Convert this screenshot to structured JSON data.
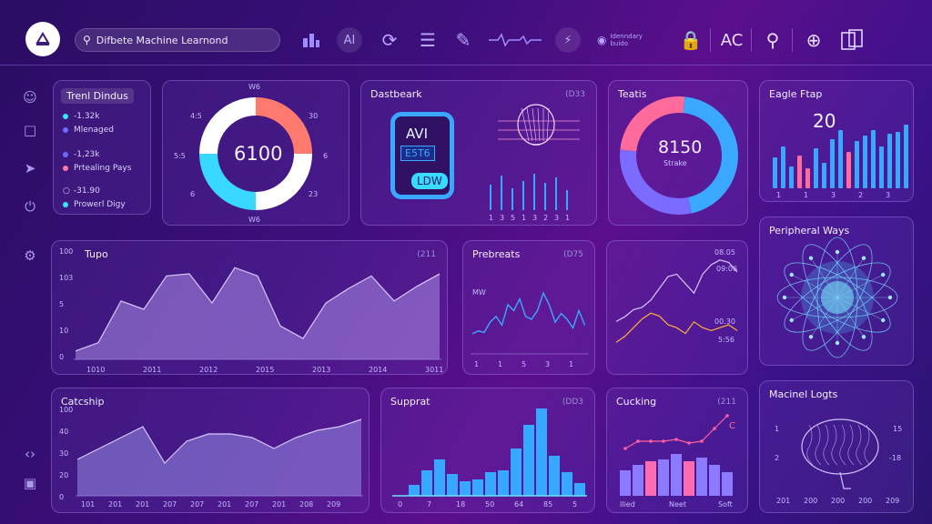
{
  "app": {
    "search_text": "Difbete Machine Learnond"
  },
  "topbar": {
    "icons": [
      "apps-icon",
      "ai-badge",
      "refresh-icon",
      "list-icon",
      "edit-icon",
      "waveform-icon",
      "bolt-icon",
      "profile-info-icon",
      "lock-icon",
      "ac-label",
      "search-icon",
      "compass-icon",
      "panels-icon"
    ],
    "ai_label": "AI",
    "ac_label": "AC",
    "info_line1": "Idenndary",
    "info_line2": "buido"
  },
  "trend": {
    "title": "Trenl Dindus",
    "items": [
      {
        "value": "-1.32k",
        "label": "Mlenaged",
        "color": "#37e6ff"
      },
      {
        "value": "-1,23k",
        "label": "Prtealing Pays",
        "color": "#ff7aa8"
      },
      {
        "value": "-31.90",
        "label": "Prowerl Digy",
        "color": "#6b6bff"
      }
    ]
  },
  "donut1": {
    "center": "6100",
    "top": "W6",
    "bottom": "W6",
    "l1": "4:5",
    "l2": "5:5",
    "l3": "6",
    "r1": "30",
    "r2": "6",
    "r3": "23",
    "segments": [
      {
        "pct": 0.25,
        "color": "#ff7a6e"
      },
      {
        "pct": 0.25,
        "color": "#ffffff"
      },
      {
        "pct": 0.25,
        "color": "#39d9ff"
      },
      {
        "pct": 0.25,
        "color": "#ffffff"
      }
    ]
  },
  "dashboard": {
    "title": "Dastbeark",
    "code": "(D33",
    "card_top": "AVI",
    "card_mid": "E5T6",
    "card_bottom": "LDW",
    "bars": [
      28,
      38,
      24,
      32,
      40,
      30,
      36,
      22
    ],
    "xlabels": [
      "1",
      "3",
      "5",
      "1",
      "3",
      "2",
      "3",
      "1"
    ]
  },
  "tests": {
    "title": "Teatis",
    "center": "8150",
    "sub": "Strake",
    "segments": [
      {
        "pct": 0.45,
        "color": "#3aa8ff"
      },
      {
        "pct": 0.3,
        "color": "#7b6cff"
      },
      {
        "pct": 0.25,
        "color": "#ff6b9b"
      }
    ]
  },
  "eagle": {
    "title": "Eagle Ftap",
    "value": "20",
    "bars": [
      {
        "v": 34,
        "c": "#3aa8ff"
      },
      {
        "v": 46,
        "c": "#3aa8ff"
      },
      {
        "v": 24,
        "c": "#3aa8ff"
      },
      {
        "v": 36,
        "c": "#ff6b9b"
      },
      {
        "v": 22,
        "c": "#ff6b9b"
      },
      {
        "v": 44,
        "c": "#3aa8ff"
      },
      {
        "v": 28,
        "c": "#3aa8ff"
      },
      {
        "v": 54,
        "c": "#3aa8ff"
      },
      {
        "v": 64,
        "c": "#3aa8ff"
      },
      {
        "v": 40,
        "c": "#ff6b9b"
      },
      {
        "v": 52,
        "c": "#3aa8ff"
      },
      {
        "v": 58,
        "c": "#3aa8ff"
      },
      {
        "v": 64,
        "c": "#3aa8ff"
      },
      {
        "v": 46,
        "c": "#3aa8ff"
      },
      {
        "v": 60,
        "c": "#3aa8ff"
      },
      {
        "v": 62,
        "c": "#3aa8ff"
      },
      {
        "v": 70,
        "c": "#3aa8ff"
      }
    ],
    "xlabels": [
      "1",
      "1",
      "3",
      "2",
      "3"
    ]
  },
  "tupo": {
    "title": "Tupo",
    "code": "(211",
    "ylabels": [
      "100",
      "103",
      "5",
      "10",
      "0"
    ],
    "xlabels": [
      "1010",
      "2011",
      "2012",
      "2015",
      "2013",
      "2014",
      "3011"
    ],
    "values": [
      4,
      8,
      28,
      24,
      40,
      41,
      27,
      44,
      40,
      16,
      10,
      27,
      34,
      40,
      28,
      35,
      41
    ]
  },
  "prebreats": {
    "title": "Prebreats",
    "code": "(D75",
    "label": "MW",
    "values": [
      10,
      12,
      11,
      18,
      22,
      16,
      30,
      26,
      34,
      22,
      20,
      26,
      38,
      30,
      18,
      24,
      20,
      14,
      26,
      16
    ],
    "xlabels": [
      "1",
      "1",
      "5",
      "3",
      "1"
    ]
  },
  "line3": {
    "a1": "08.05",
    "a2": "09:06",
    "b1": "00.30",
    "b2": "5:56",
    "series_a": [
      32,
      36,
      42,
      44,
      50,
      60,
      70,
      72,
      64,
      56,
      72,
      80,
      84,
      82,
      74
    ],
    "series_b": [
      18,
      22,
      28,
      34,
      38,
      36,
      30,
      28,
      24,
      32,
      28,
      26,
      28,
      30,
      26
    ]
  },
  "peripheral": {
    "title": "Peripheral Ways"
  },
  "catchup": {
    "title": "Catcship",
    "ylabels": [
      "100",
      "40",
      "30",
      "20",
      "0"
    ],
    "xlabels": [
      "101",
      "201",
      "201",
      "207",
      "207",
      "201",
      "207",
      "201",
      "208",
      "209"
    ],
    "values": [
      20,
      26,
      32,
      38,
      18,
      30,
      34,
      34,
      32,
      26,
      32,
      36,
      38,
      42
    ]
  },
  "support": {
    "title": "Supprat",
    "code": "(DD3",
    "bars": [
      0,
      12,
      28,
      40,
      24,
      16,
      18,
      26,
      28,
      52,
      78,
      96,
      44,
      26,
      14
    ],
    "xlabels": [
      "0",
      "7",
      "18",
      "50",
      "64",
      "85",
      "5"
    ]
  },
  "cucking": {
    "title": "Cucking",
    "code": "(211",
    "bars": [
      {
        "v": 28,
        "c": "#8d7bff"
      },
      {
        "v": 34,
        "c": "#8d7bff"
      },
      {
        "v": 38,
        "c": "#ff6bb0"
      },
      {
        "v": 40,
        "c": "#8d7bff"
      },
      {
        "v": 46,
        "c": "#8d7bff"
      },
      {
        "v": 38,
        "c": "#ff6bb0"
      },
      {
        "v": 42,
        "c": "#8d7bff"
      },
      {
        "v": 34,
        "c": "#8d7bff"
      },
      {
        "v": 26,
        "c": "#8d7bff"
      }
    ],
    "line": [
      52,
      60,
      60,
      60,
      62,
      58,
      60,
      74,
      88
    ],
    "xlabels": [
      "Ilied",
      "Neet",
      "Soft"
    ],
    "marker": "C"
  },
  "machine": {
    "title": "Macinel Logts",
    "l1": "1",
    "l2": "2",
    "r1": "15",
    "r2": "-18",
    "xlabels": [
      "201",
      "200",
      "200",
      "200",
      "209"
    ]
  },
  "sidebar": {
    "icons": [
      "user-icon",
      "folder-icon",
      "rocket-icon",
      "power-icon",
      "settings-icon",
      "code-icon",
      "lock-icon"
    ]
  }
}
